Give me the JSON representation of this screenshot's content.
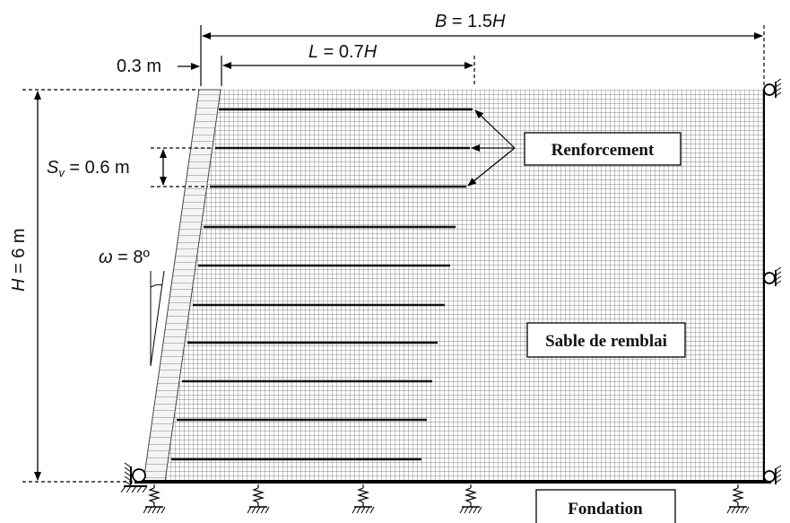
{
  "dimensions": {
    "B": {
      "symbol": "B",
      "rest": " = 1.5",
      "italic_tail": "H"
    },
    "L": {
      "symbol": "L",
      "rest": " = 0.7",
      "italic_tail": "H"
    },
    "facing": "0.3 m",
    "Sv": {
      "symbol": "S",
      "sub": "v",
      "rest": " = 0.6 m"
    },
    "H": {
      "symbol": "H",
      "rest": " = 6 m"
    },
    "omega": {
      "symbol": "ω",
      "rest": " = 8º"
    }
  },
  "labels": {
    "reinforcement": "Renforcement",
    "backfill": "Sable de remblai",
    "foundation": "Fondation"
  },
  "colors": {
    "mesh": "#333333",
    "reinforcement": "#111111",
    "frame": "#000000"
  }
}
